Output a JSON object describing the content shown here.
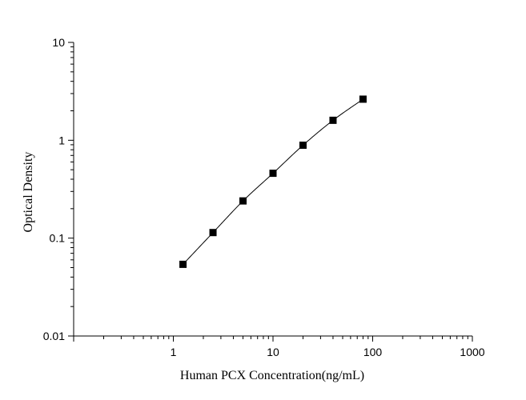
{
  "chart_data": {
    "type": "scatter",
    "title": "",
    "xlabel": "Human PCX Concentration(ng/mL)",
    "ylabel": "Optical Density",
    "x_scale": "log",
    "y_scale": "log",
    "xlim": [
      0.1,
      1000
    ],
    "ylim": [
      0.01,
      10
    ],
    "x_tick_labels": [
      "1",
      "10",
      "100",
      "1000"
    ],
    "x_tick_values": [
      1,
      10,
      100,
      1000
    ],
    "y_tick_labels": [
      "0.01",
      "0.1",
      "1",
      "10"
    ],
    "y_tick_values": [
      0.01,
      0.1,
      1,
      10
    ],
    "grid": false,
    "legend": "none",
    "marker": "square",
    "fitted_curve": true,
    "series": [
      {
        "x": [
          1.25,
          2.5,
          5,
          10,
          20,
          40,
          80
        ],
        "y": [
          0.054,
          0.114,
          0.24,
          0.46,
          0.89,
          1.6,
          2.63
        ]
      }
    ],
    "colors": {
      "axis": "#000000",
      "marker": "#000000",
      "curve": "#000000"
    }
  }
}
